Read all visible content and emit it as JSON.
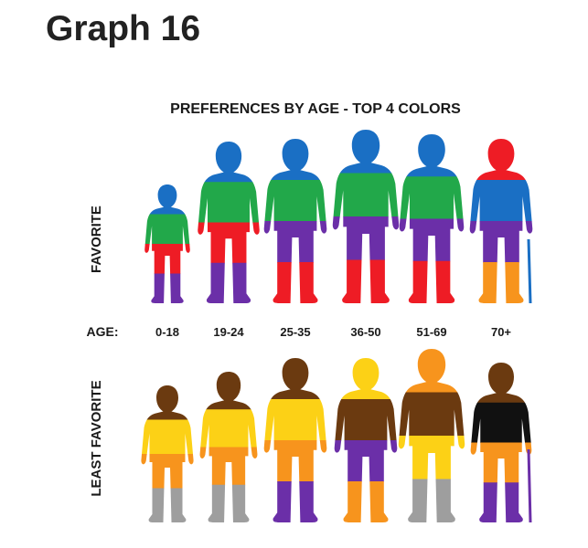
{
  "page": {
    "title": "Graph 16"
  },
  "chart_data": {
    "type": "figure",
    "title": "PREFERENCES BY AGE - TOP 4 COLORS",
    "age_label": "AGE:",
    "row_labels": [
      "FAVORITE",
      "LEAST FAVORITE"
    ],
    "age_groups": [
      "0-18",
      "19-24",
      "25-35",
      "36-50",
      "51-69",
      "70+"
    ],
    "colors": {
      "blue": "#1a6fc4",
      "green": "#22a84a",
      "red": "#ee1c25",
      "purple": "#6b2fa8",
      "orange": "#f7941d",
      "brown": "#6b3a10",
      "yellow": "#fcd116",
      "gray": "#9e9e9e",
      "black": "#111111"
    },
    "favorite": [
      {
        "age": "0-18",
        "colors_top_to_bottom": [
          "blue",
          "green",
          "red",
          "purple"
        ]
      },
      {
        "age": "19-24",
        "colors_top_to_bottom": [
          "blue",
          "green",
          "red",
          "purple"
        ]
      },
      {
        "age": "25-35",
        "colors_top_to_bottom": [
          "blue",
          "green",
          "purple",
          "red"
        ]
      },
      {
        "age": "36-50",
        "colors_top_to_bottom": [
          "blue",
          "green",
          "purple",
          "red"
        ]
      },
      {
        "age": "51-69",
        "colors_top_to_bottom": [
          "blue",
          "green",
          "purple",
          "red"
        ]
      },
      {
        "age": "70+",
        "colors_top_to_bottom": [
          "red",
          "blue",
          "purple",
          "orange"
        ]
      }
    ],
    "least_favorite": [
      {
        "age": "0-18",
        "colors_top_to_bottom": [
          "brown",
          "yellow",
          "orange",
          "gray"
        ]
      },
      {
        "age": "19-24",
        "colors_top_to_bottom": [
          "brown",
          "yellow",
          "orange",
          "gray"
        ]
      },
      {
        "age": "25-35",
        "colors_top_to_bottom": [
          "brown",
          "yellow",
          "orange",
          "purple"
        ]
      },
      {
        "age": "36-50",
        "colors_top_to_bottom": [
          "yellow",
          "brown",
          "purple",
          "orange"
        ]
      },
      {
        "age": "51-69",
        "colors_top_to_bottom": [
          "orange",
          "brown",
          "yellow",
          "gray"
        ]
      },
      {
        "age": "70+",
        "colors_top_to_bottom": [
          "brown",
          "black",
          "orange",
          "purple"
        ]
      }
    ]
  }
}
